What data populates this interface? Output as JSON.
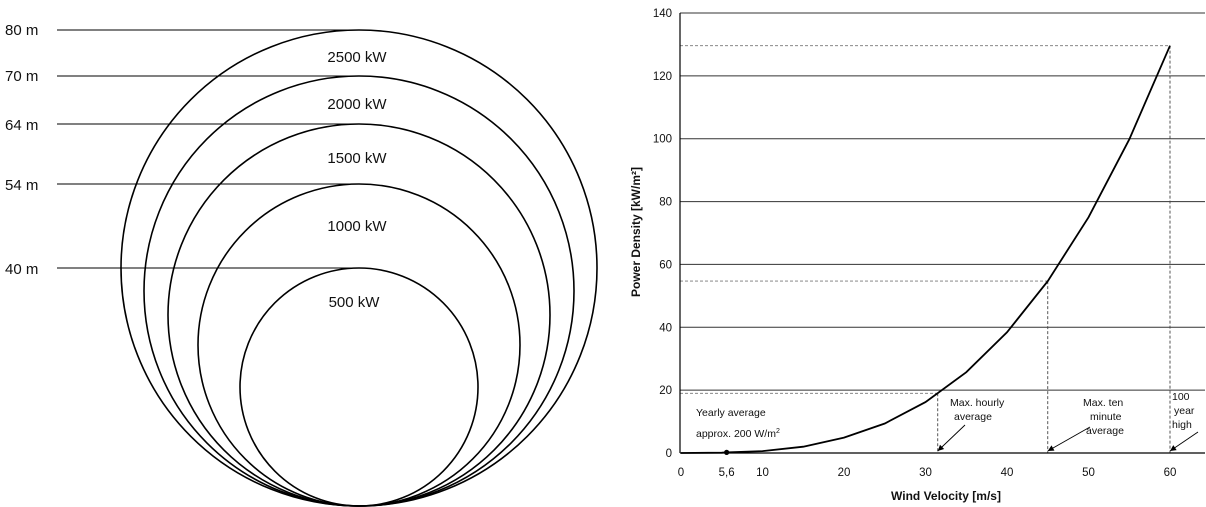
{
  "turbines": {
    "rows": [
      {
        "diameter": "80 m",
        "power": "2500 kW"
      },
      {
        "diameter": "70 m",
        "power": "2000 kW"
      },
      {
        "diameter": "64 m",
        "power": "1500 kW"
      },
      {
        "diameter": "54 m",
        "power": "1000 kW"
      },
      {
        "diameter": "40 m",
        "power": "500 kW"
      }
    ]
  },
  "chart_data": {
    "type": "line",
    "xlabel": "Wind Velocity [m/s]",
    "ylabel": "Power Density [kW/m²]",
    "xlim": [
      0,
      65
    ],
    "ylim": [
      0,
      140
    ],
    "xticks": [
      0,
      10,
      20,
      30,
      40,
      50,
      60
    ],
    "yticks": [
      0,
      20,
      40,
      60,
      80,
      100,
      120,
      140
    ],
    "extra_xtick": {
      "value": 5.6,
      "label": "5,6"
    },
    "grid": "horizontal",
    "series": [
      {
        "x": [
          0,
          5,
          5.6,
          10,
          15,
          20,
          25,
          30,
          35,
          40,
          45,
          50,
          55,
          60
        ],
        "y": [
          0,
          0.08,
          0.2,
          0.6,
          2.0,
          4.9,
          9.4,
          16.2,
          25.7,
          38.4,
          54.7,
          75,
          99.8,
          129.6
        ]
      }
    ],
    "reference_lines": [
      {
        "x": 31.5,
        "y": 19
      },
      {
        "x": 45,
        "y": 54.7
      },
      {
        "x": 60,
        "y": 129.6
      }
    ],
    "marker": {
      "x": 5.6,
      "y": 0.2
    },
    "annotations": [
      {
        "line1": "Yearly average",
        "line2": "approx. 200 W/m",
        "sup": "2"
      },
      {
        "line1": "Max. hourly",
        "line2": "average"
      },
      {
        "line1": "Max. ten",
        "line2": "minute",
        "line3": "average"
      },
      {
        "line1": "100",
        "line2": "year",
        "line3": "high"
      }
    ]
  }
}
